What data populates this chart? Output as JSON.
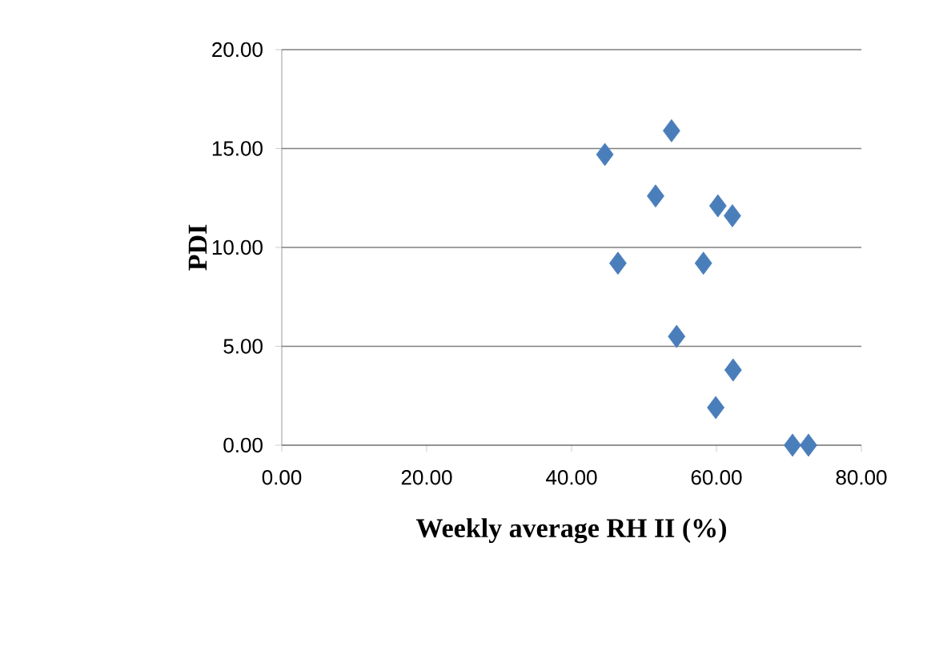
{
  "chart_data": {
    "type": "scatter",
    "xlabel": "Weekly average RH II (%)",
    "ylabel": "PDI",
    "x": [
      44.6,
      53.8,
      51.6,
      60.2,
      62.2,
      46.4,
      58.2,
      54.5,
      62.3,
      59.9,
      70.5,
      72.7
    ],
    "values": [
      14.7,
      15.9,
      12.6,
      12.1,
      11.6,
      9.2,
      9.2,
      5.5,
      3.8,
      1.9,
      0,
      0
    ],
    "color": "#4a7ebb",
    "marker": "diamond",
    "grid": "y",
    "xlim": [
      0,
      80
    ],
    "ylim": [
      0,
      20
    ],
    "xticks": [
      {
        "value": 0,
        "label": "0.00"
      },
      {
        "value": 20,
        "label": "20.00"
      },
      {
        "value": 40,
        "label": "40.00"
      },
      {
        "value": 60,
        "label": "60.00"
      },
      {
        "value": 80,
        "label": "80.00"
      }
    ],
    "yticks": [
      {
        "value": 0,
        "label": "0.00"
      },
      {
        "value": 5,
        "label": "5.00"
      },
      {
        "value": 10,
        "label": "10.00"
      },
      {
        "value": 15,
        "label": "15.00"
      },
      {
        "value": 20,
        "label": "20.00"
      }
    ]
  }
}
